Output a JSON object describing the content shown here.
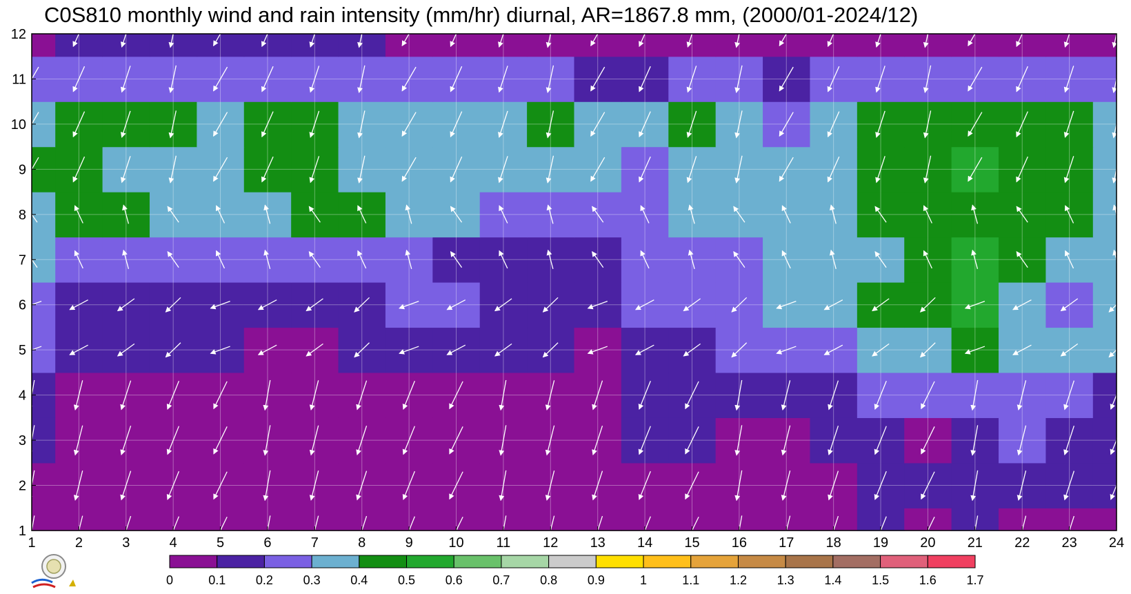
{
  "title": "C0S810 monthly wind and rain intensity (mm/hr) diurnal, AR=1867.8 mm, (2000/01-2024/12)",
  "chart_data": {
    "type": "heatmap",
    "title": "C0S810 monthly wind and rain intensity (mm/hr) diurnal, AR=1867.8 mm, (2000/01-2024/12)",
    "xlabel": "",
    "ylabel": "",
    "x_ticks": [
      "1",
      "2",
      "3",
      "4",
      "5",
      "6",
      "7",
      "8",
      "9",
      "10",
      "11",
      "12",
      "13",
      "14",
      "15",
      "16",
      "17",
      "18",
      "19",
      "20",
      "21",
      "22",
      "23",
      "24"
    ],
    "y_ticks": [
      "1",
      "2",
      "3",
      "4",
      "5",
      "6",
      "7",
      "8",
      "9",
      "10",
      "11",
      "12"
    ],
    "xlim": [
      1,
      24
    ],
    "ylim": [
      1,
      12
    ],
    "grid": true,
    "colorbar": {
      "levels": [
        "0",
        "0.1",
        "0.2",
        "0.3",
        "0.4",
        "0.5",
        "0.6",
        "0.7",
        "0.8",
        "0.9",
        "1",
        "1.1",
        "1.2",
        "1.3",
        "1.4",
        "1.5",
        "1.6",
        "1.7"
      ],
      "colors": [
        "#8a1094",
        "#4b22a3",
        "#7a60e3",
        "#6cb0d0",
        "#138e13",
        "#22a82e",
        "#69c16a",
        "#a6d6a6",
        "#cbcbcb",
        "#ffdf00",
        "#ffbf1a",
        "#e5a33a",
        "#c68a45",
        "#a87449",
        "#a36e63",
        "#e0607a",
        "#f04060",
        "#d42040"
      ]
    },
    "rain_intensity": [
      [
        0.05,
        0.05,
        0.05,
        0.05,
        0.05,
        0.05,
        0.05,
        0.05,
        0.05,
        0.05,
        0.05,
        0.05,
        0.05,
        0.05,
        0.05,
        0.05,
        0.05,
        0.05,
        0.15,
        0.05,
        0.15,
        0.05,
        0.05,
        0.05
      ],
      [
        0.05,
        0.05,
        0.05,
        0.05,
        0.05,
        0.05,
        0.05,
        0.05,
        0.05,
        0.05,
        0.05,
        0.05,
        0.05,
        0.05,
        0.05,
        0.05,
        0.05,
        0.05,
        0.15,
        0.15,
        0.15,
        0.15,
        0.15,
        0.15
      ],
      [
        0.15,
        0.05,
        0.05,
        0.05,
        0.05,
        0.05,
        0.05,
        0.05,
        0.05,
        0.05,
        0.05,
        0.05,
        0.05,
        0.15,
        0.15,
        0.05,
        0.05,
        0.15,
        0.15,
        0.05,
        0.15,
        0.25,
        0.15,
        0.15
      ],
      [
        0.15,
        0.05,
        0.05,
        0.05,
        0.05,
        0.05,
        0.05,
        0.05,
        0.05,
        0.05,
        0.05,
        0.05,
        0.05,
        0.15,
        0.15,
        0.15,
        0.15,
        0.15,
        0.25,
        0.25,
        0.25,
        0.25,
        0.25,
        0.15
      ],
      [
        0.25,
        0.15,
        0.15,
        0.15,
        0.15,
        0.05,
        0.05,
        0.15,
        0.15,
        0.15,
        0.15,
        0.15,
        0.05,
        0.15,
        0.15,
        0.25,
        0.25,
        0.25,
        0.35,
        0.35,
        0.45,
        0.35,
        0.35,
        0.35
      ],
      [
        0.25,
        0.15,
        0.15,
        0.15,
        0.15,
        0.15,
        0.15,
        0.15,
        0.25,
        0.25,
        0.15,
        0.15,
        0.15,
        0.25,
        0.25,
        0.25,
        0.35,
        0.35,
        0.45,
        0.45,
        0.55,
        0.35,
        0.25,
        0.35
      ],
      [
        0.35,
        0.25,
        0.25,
        0.25,
        0.25,
        0.25,
        0.25,
        0.25,
        0.25,
        0.15,
        0.15,
        0.15,
        0.15,
        0.25,
        0.25,
        0.25,
        0.35,
        0.35,
        0.35,
        0.45,
        0.55,
        0.45,
        0.35,
        0.35
      ],
      [
        0.35,
        0.45,
        0.45,
        0.35,
        0.35,
        0.35,
        0.45,
        0.45,
        0.35,
        0.35,
        0.25,
        0.25,
        0.25,
        0.25,
        0.35,
        0.35,
        0.35,
        0.35,
        0.45,
        0.45,
        0.45,
        0.45,
        0.45,
        0.35
      ],
      [
        0.45,
        0.45,
        0.35,
        0.35,
        0.35,
        0.45,
        0.45,
        0.35,
        0.35,
        0.35,
        0.35,
        0.35,
        0.35,
        0.25,
        0.35,
        0.35,
        0.35,
        0.35,
        0.45,
        0.45,
        0.55,
        0.45,
        0.45,
        0.35
      ],
      [
        0.35,
        0.45,
        0.45,
        0.45,
        0.35,
        0.45,
        0.45,
        0.35,
        0.35,
        0.35,
        0.35,
        0.45,
        0.35,
        0.35,
        0.45,
        0.35,
        0.25,
        0.35,
        0.45,
        0.45,
        0.45,
        0.45,
        0.45,
        0.35
      ],
      [
        0.25,
        0.25,
        0.25,
        0.25,
        0.25,
        0.25,
        0.25,
        0.25,
        0.25,
        0.25,
        0.25,
        0.25,
        0.15,
        0.15,
        0.25,
        0.25,
        0.15,
        0.25,
        0.25,
        0.25,
        0.25,
        0.25,
        0.25,
        0.25
      ],
      [
        0.05,
        0.15,
        0.15,
        0.15,
        0.15,
        0.15,
        0.15,
        0.15,
        0.05,
        0.05,
        0.05,
        0.05,
        0.05,
        0.05,
        0.05,
        0.05,
        0.05,
        0.05,
        0.05,
        0.05,
        0.05,
        0.05,
        0.05,
        0.05
      ]
    ]
  }
}
